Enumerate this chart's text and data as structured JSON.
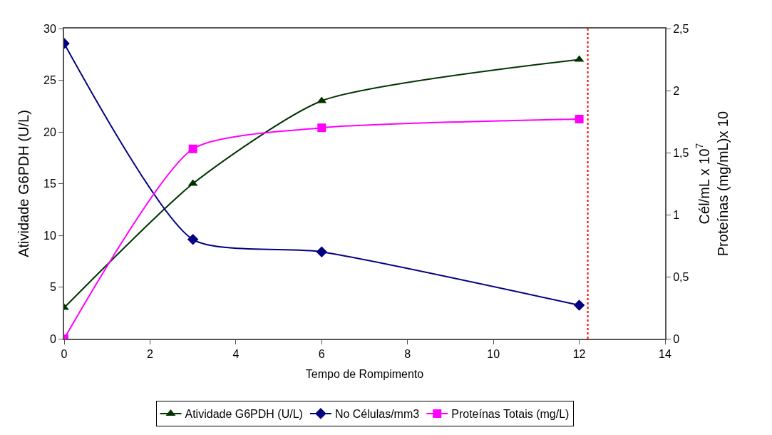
{
  "chart_data": {
    "type": "line",
    "xlabel": "Tempo de Rompimento",
    "ylabel": "Atividade G6PDH (U/L)",
    "y2label": "Cél/mL x 10$^{7}$\nProteínas (mg/mL)x 10",
    "x": [
      0,
      3,
      6,
      12
    ],
    "series": [
      {
        "name": "Atividade G6PDH (U/L)",
        "color": "#003300",
        "marker": "triangle",
        "values": [
          3,
          15,
          23,
          27
        ]
      },
      {
        "name": "No Células/mm3",
        "color": "#000080",
        "marker": "diamond",
        "axis": "y2",
        "values": [
          2.38,
          0.8,
          0.7,
          0.27
        ]
      },
      {
        "name": "Proteínas Totais (mg/L)",
        "color": "#ff00ff",
        "marker": "square",
        "axis": "y2",
        "values": [
          0,
          1.53,
          1.7,
          1.77
        ]
      }
    ],
    "xlim": [
      0,
      14
    ],
    "xticks": [
      0,
      2,
      4,
      6,
      8,
      10,
      12,
      14
    ],
    "ylim": [
      0,
      30
    ],
    "yticks": [
      0,
      5,
      10,
      15,
      20,
      25,
      30
    ],
    "y2lim": [
      0,
      2.5
    ],
    "y2ticks": [
      0,
      {
        "value": 0.5,
        "label": "0,5"
      },
      1,
      {
        "value": 1.5,
        "label": "1,5"
      },
      2,
      {
        "value": 2.5,
        "label": "2,5"
      }
    ],
    "ref_lines": [
      {
        "axis": "x",
        "value": 12.2,
        "color": "#ff0000",
        "line_style": "dotted"
      }
    ],
    "legend": "bottom",
    "line_style": "solid"
  }
}
